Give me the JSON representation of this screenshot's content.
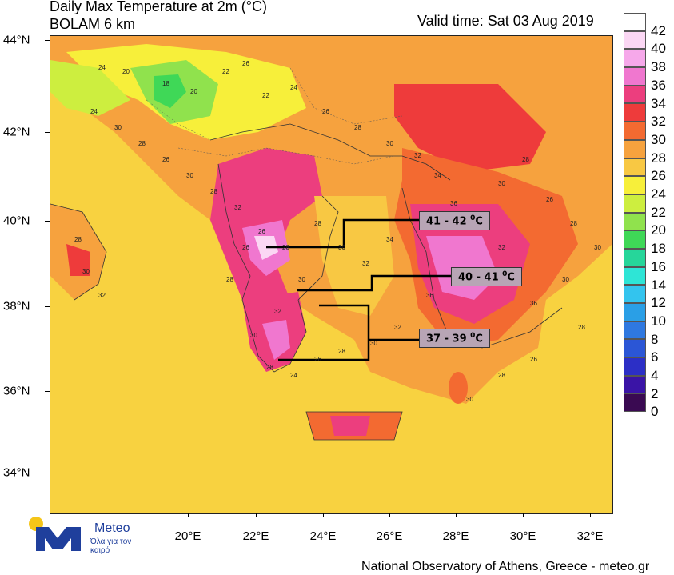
{
  "header": {
    "title": "Daily Max Temperature at 2m (°C)",
    "subtitle": "BOLAM 6 km",
    "valid_time": "Valid time: Sat 03 Aug 2019"
  },
  "axes": {
    "lat_labels": [
      "44°N",
      "42°N",
      "40°N",
      "38°N",
      "36°N",
      "34°N"
    ],
    "lon_labels": [
      "20°E",
      "22°E",
      "24°E",
      "26°E",
      "28°E",
      "30°E",
      "32°E"
    ]
  },
  "colorbar": {
    "labels": [
      "42",
      "40",
      "38",
      "36",
      "34",
      "32",
      "30",
      "28",
      "26",
      "24",
      "22",
      "20",
      "18",
      "16",
      "14",
      "12",
      "10",
      "8",
      "6",
      "4",
      "2",
      "0"
    ],
    "colors": [
      "#ffffff",
      "#fbd7f4",
      "#f6a8ea",
      "#f077cf",
      "#ec3e7e",
      "#ee3b3b",
      "#f36a31",
      "#f6a23e",
      "#f8c843",
      "#f7ef3a",
      "#cdee3f",
      "#90e24d",
      "#3fd857",
      "#26d69a",
      "#2ee5d6",
      "#33c4ee",
      "#2a9fe6",
      "#2f78e0",
      "#2b56d6",
      "#2c2fc6",
      "#3a14a6",
      "#3a0a52"
    ]
  },
  "callouts": [
    {
      "text": "41 - 42 ",
      "unit": "C",
      "sup": "0"
    },
    {
      "text": "40 - 41 ",
      "unit": "C",
      "sup": "0"
    },
    {
      "text": "37 - 39 ",
      "unit": "C",
      "sup": "0"
    }
  ],
  "map_numbers": [
    "24",
    "20",
    "18",
    "20",
    "22",
    "26",
    "22",
    "24",
    "26",
    "28",
    "30",
    "32",
    "34",
    "36",
    "38",
    "30",
    "28",
    "26",
    "28",
    "30",
    "32",
    "34",
    "36",
    "32",
    "30",
    "28",
    "26",
    "24",
    "28",
    "30",
    "32",
    "30",
    "28",
    "26",
    "32",
    "28",
    "30",
    "26",
    "28",
    "30",
    "24",
    "28",
    "30",
    "32",
    "28",
    "26",
    "28",
    "30",
    "32",
    "34",
    "36",
    "30",
    "28",
    "26",
    "28",
    "30"
  ],
  "logo": {
    "name": "Meteo",
    "tagline": "Όλα για τον καιρό"
  },
  "footer": "National Observatory of Athens, Greece - meteo.gr"
}
